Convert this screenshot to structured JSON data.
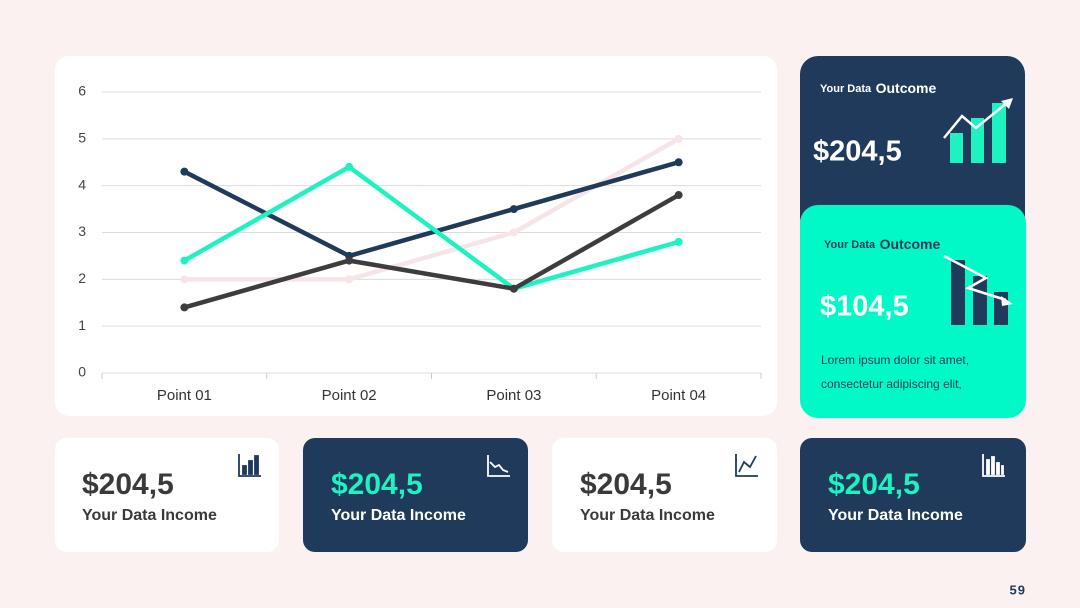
{
  "chart_data": {
    "type": "line",
    "categories": [
      "Point 01",
      "Point 02",
      "Point 03",
      "Point 04"
    ],
    "series": [
      {
        "color": "#f7e4e7",
        "values": [
          2,
          2,
          3,
          5
        ]
      },
      {
        "color": "#1f3a5a",
        "values": [
          4.3,
          2.5,
          3.5,
          4.5
        ]
      },
      {
        "color": "#1df2c0",
        "values": [
          2.4,
          4.4,
          1.8,
          2.8
        ]
      },
      {
        "color": "#3d3d3d",
        "values": [
          1.4,
          2.4,
          1.8,
          3.8
        ]
      }
    ],
    "ylim": [
      0,
      6
    ],
    "yticks": [
      0,
      1,
      2,
      3,
      4,
      5,
      6
    ],
    "grid": true
  },
  "outcome_cards": [
    {
      "label_small": "Your Data",
      "label_big": "Outcome",
      "value": "$204,5"
    },
    {
      "label_small": "Your Data",
      "label_big": "Outcome",
      "value": "$104,5",
      "text": [
        "Lorem ipsum dolor sit amet,",
        "consectetur adipiscing elit,"
      ]
    }
  ],
  "income_cards": [
    {
      "value": "$204,5",
      "label": "Your Data Income"
    },
    {
      "value": "$204,5",
      "label": "Your Data Income"
    },
    {
      "value": "$204,5",
      "label": "Your Data Income"
    },
    {
      "value": "$204,5",
      "label": "Your Data Income"
    }
  ],
  "page_number": "59"
}
